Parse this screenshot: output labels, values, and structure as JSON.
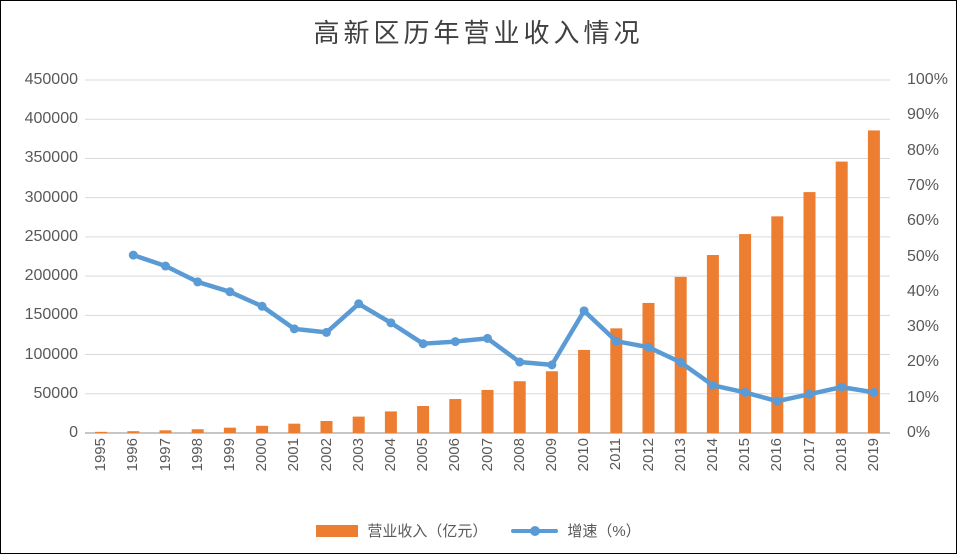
{
  "chart_data": {
    "type": "combo",
    "title": "高新区历年营业收入情况",
    "categories": [
      "1995",
      "1996",
      "1997",
      "1998",
      "1999",
      "2000",
      "2001",
      "2002",
      "2003",
      "2004",
      "2005",
      "2006",
      "2007",
      "2008",
      "2009",
      "2010",
      "2011",
      "2012",
      "2013",
      "2014",
      "2015",
      "2016",
      "2017",
      "2018",
      "2019"
    ],
    "series": [
      {
        "name": "营业收入（亿元）",
        "type": "bar",
        "axis": "left",
        "color": "#ED7D31",
        "values": [
          1500,
          2300,
          3400,
          4800,
          6800,
          9200,
          11900,
          15300,
          20900,
          27500,
          34400,
          43300,
          54900,
          66000,
          78700,
          105900,
          133400,
          165800,
          199000,
          226900,
          253600,
          276200,
          307100,
          346000,
          385700
        ]
      },
      {
        "name": "增速（%）",
        "type": "line",
        "axis": "right",
        "color": "#5B9BD5",
        "values": [
          null,
          50.4,
          47.3,
          42.8,
          40,
          35.9,
          29.5,
          28.5,
          36.6,
          31.2,
          25.3,
          25.9,
          26.8,
          20.1,
          19.3,
          34.6,
          26,
          24.3,
          20,
          13.5,
          11.5,
          9,
          11,
          13,
          11.5
        ]
      }
    ],
    "left_axis": {
      "min": 0,
      "max": 450000,
      "step": 50000
    },
    "right_axis": {
      "min": 0,
      "max": 100,
      "step": 10,
      "suffix": "%"
    },
    "grid": true,
    "legend_position": "bottom",
    "colors": {
      "grid": "#D9D9D9",
      "axis_line": "#C6C6C6",
      "tick_text": "#595959",
      "title_text": "#404040",
      "border": "#000000"
    }
  }
}
